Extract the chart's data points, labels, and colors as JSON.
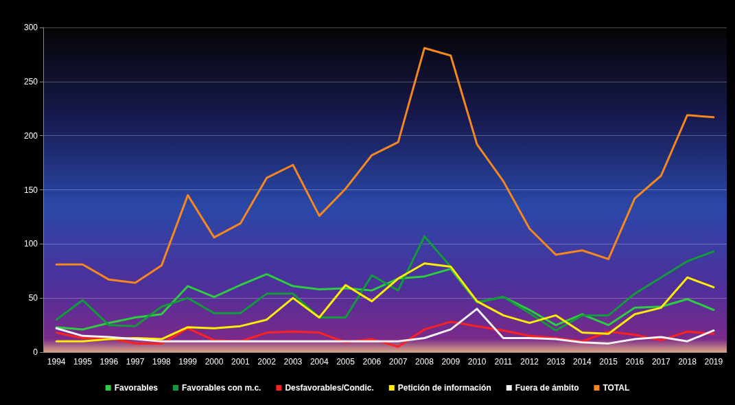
{
  "chart_data": {
    "type": "line",
    "categories": [
      "1994",
      "1995",
      "1996",
      "1997",
      "1998",
      "1999",
      "2000",
      "2001",
      "2002",
      "2003",
      "2004",
      "2005",
      "2006",
      "2007",
      "2008",
      "2009",
      "2010",
      "2011",
      "2012",
      "2013",
      "2014",
      "2015",
      "2016",
      "2017",
      "2018",
      "2019"
    ],
    "series": [
      {
        "name": "Favorables",
        "color": "#2ecc40",
        "values": [
          23,
          21,
          27,
          32,
          35,
          61,
          51,
          62,
          72,
          61,
          58,
          59,
          57,
          68,
          70,
          77,
          46,
          51,
          39,
          25,
          35,
          25,
          41,
          42,
          49,
          39
        ]
      },
      {
        "name": "Favorables con m.c.",
        "color": "#139a3a",
        "values": [
          30,
          48,
          25,
          24,
          42,
          50,
          36,
          36,
          54,
          54,
          32,
          32,
          71,
          57,
          107,
          79,
          46,
          51,
          36,
          20,
          34,
          34,
          54,
          69,
          84,
          93
        ]
      },
      {
        "name": "Desfavorables/Condic.",
        "color": "#ff2020",
        "values": [
          18,
          13,
          13,
          8,
          8,
          22,
          11,
          10,
          18,
          19,
          18,
          9,
          12,
          5,
          21,
          28,
          24,
          20,
          15,
          13,
          10,
          19,
          16,
          11,
          19,
          17
        ]
      },
      {
        "name": "Petición de información",
        "color": "#ffee00",
        "values": [
          10,
          10,
          12,
          13,
          12,
          23,
          22,
          24,
          30,
          50,
          32,
          62,
          47,
          68,
          82,
          79,
          47,
          34,
          27,
          34,
          18,
          17,
          35,
          41,
          69,
          60
        ]
      },
      {
        "name": "Fuera de ámbito",
        "color": "#f2f2f2",
        "values": [
          22,
          15,
          14,
          12,
          10,
          10,
          10,
          10,
          10,
          10,
          10,
          10,
          10,
          10,
          13,
          21,
          40,
          13,
          13,
          12,
          9,
          8,
          12,
          14,
          10,
          20
        ]
      },
      {
        "name": "TOTAL",
        "color": "#f5871f",
        "values": [
          81,
          81,
          67,
          64,
          80,
          145,
          106,
          119,
          161,
          173,
          126,
          151,
          182,
          194,
          281,
          274,
          192,
          158,
          114,
          90,
          94,
          86,
          142,
          163,
          219,
          217
        ]
      }
    ],
    "ylim": [
      0,
      300
    ],
    "yticks": [
      0,
      50,
      100,
      150,
      200,
      250,
      300
    ],
    "grid": "y",
    "legend": "bottom",
    "marker": "none",
    "line_style": "solid"
  }
}
